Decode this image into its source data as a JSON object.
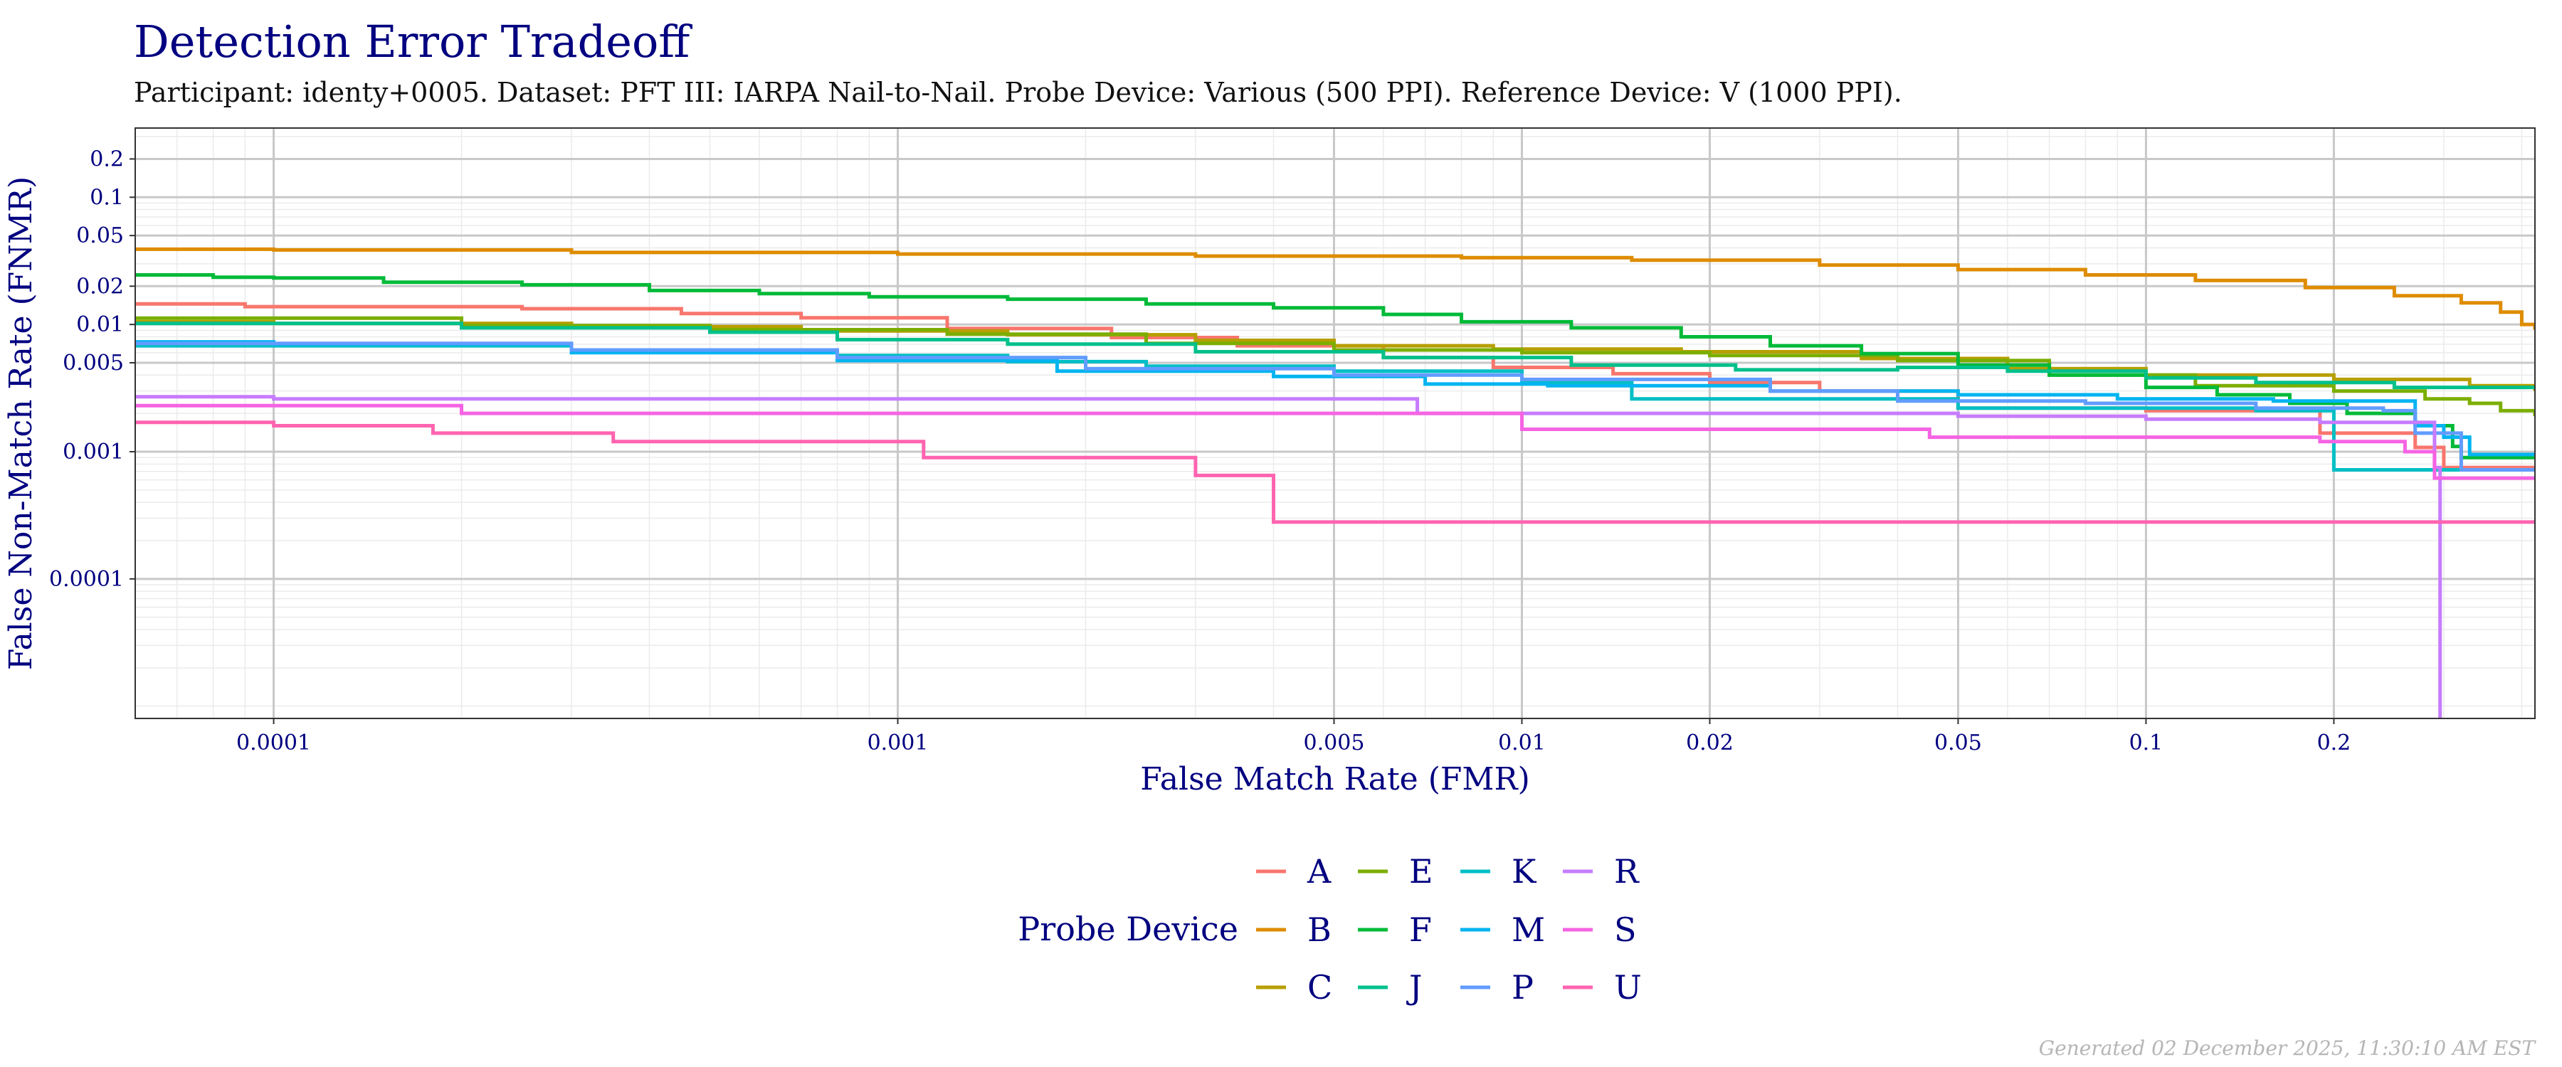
{
  "chart_data": {
    "type": "line",
    "title": "Detection Error Tradeoff",
    "subtitle": "Participant: identy+0005. Dataset: PFT III: IARPA Nail-to-Nail. Probe Device: Various (500 PPI). Reference Device: V (1000 PPI).",
    "xlabel": "False Match Rate (FMR)",
    "ylabel": "False Non-Match Rate (FNMR)",
    "x_scale": "log",
    "y_scale": "log",
    "xlim": [
      6e-05,
      0.42
    ],
    "ylim": [
      8e-06,
      0.35
    ],
    "x_ticks": [
      {
        "value": 0.0001,
        "label": "0.0001"
      },
      {
        "value": 0.001,
        "label": "0.001"
      },
      {
        "value": 0.005,
        "label": "0.005"
      },
      {
        "value": 0.01,
        "label": "0.01"
      },
      {
        "value": 0.02,
        "label": "0.02"
      },
      {
        "value": 0.05,
        "label": "0.05"
      },
      {
        "value": 0.1,
        "label": "0.1"
      },
      {
        "value": 0.2,
        "label": "0.2"
      }
    ],
    "y_ticks": [
      {
        "value": 0.2,
        "label": "0.2"
      },
      {
        "value": 0.1,
        "label": "0.1"
      },
      {
        "value": 0.05,
        "label": "0.05"
      },
      {
        "value": 0.02,
        "label": "0.02"
      },
      {
        "value": 0.01,
        "label": "0.01"
      },
      {
        "value": 0.005,
        "label": "0.005"
      },
      {
        "value": 0.001,
        "label": "0.001"
      },
      {
        "value": 0.0001,
        "label": "0.0001"
      }
    ],
    "grid": true,
    "legend": {
      "title": "Probe Device",
      "position": "bottom"
    },
    "footer": "Generated 02 December 2025, 11:30:10 AM EST",
    "series": [
      {
        "name": "A",
        "color": "#F8766D",
        "points": [
          [
            6e-05,
            0.0145
          ],
          [
            9e-05,
            0.0138
          ],
          [
            0.00025,
            0.0133
          ],
          [
            0.00045,
            0.0122
          ],
          [
            0.0007,
            0.0113
          ],
          [
            0.0012,
            0.0093
          ],
          [
            0.0022,
            0.0079
          ],
          [
            0.0035,
            0.0068
          ],
          [
            0.006,
            0.0055
          ],
          [
            0.009,
            0.0046
          ],
          [
            0.014,
            0.0041
          ],
          [
            0.02,
            0.0035
          ],
          [
            0.03,
            0.003
          ],
          [
            0.05,
            0.0022
          ],
          [
            0.1,
            0.0021
          ],
          [
            0.19,
            0.0014
          ],
          [
            0.27,
            0.00108
          ],
          [
            0.3,
            0.00075
          ],
          [
            0.42,
            0.00075
          ]
        ]
      },
      {
        "name": "B",
        "color": "#DE8C00",
        "points": [
          [
            6e-05,
            0.039
          ],
          [
            0.0001,
            0.0385
          ],
          [
            0.0003,
            0.0368
          ],
          [
            0.001,
            0.0358
          ],
          [
            0.003,
            0.0345
          ],
          [
            0.008,
            0.0335
          ],
          [
            0.015,
            0.032
          ],
          [
            0.03,
            0.0293
          ],
          [
            0.05,
            0.027
          ],
          [
            0.08,
            0.0245
          ],
          [
            0.12,
            0.0222
          ],
          [
            0.18,
            0.0195
          ],
          [
            0.25,
            0.0168
          ],
          [
            0.32,
            0.0148
          ],
          [
            0.37,
            0.0125
          ],
          [
            0.4,
            0.01
          ],
          [
            0.42,
            0.0091
          ]
        ]
      },
      {
        "name": "C",
        "color": "#B79F00",
        "points": [
          [
            6e-05,
            0.0105
          ],
          [
            0.0001,
            0.0102
          ],
          [
            0.0003,
            0.0096
          ],
          [
            0.0007,
            0.0089
          ],
          [
            0.0015,
            0.0083
          ],
          [
            0.003,
            0.0075
          ],
          [
            0.005,
            0.0068
          ],
          [
            0.009,
            0.0064
          ],
          [
            0.018,
            0.0061
          ],
          [
            0.035,
            0.0054
          ],
          [
            0.06,
            0.0045
          ],
          [
            0.1,
            0.004
          ],
          [
            0.2,
            0.0037
          ],
          [
            0.33,
            0.0033
          ],
          [
            0.42,
            0.003
          ]
        ]
      },
      {
        "name": "E",
        "color": "#7CAE00",
        "points": [
          [
            6e-05,
            0.0112
          ],
          [
            0.0002,
            0.0098
          ],
          [
            0.0005,
            0.0091
          ],
          [
            0.0012,
            0.0084
          ],
          [
            0.0025,
            0.0071
          ],
          [
            0.005,
            0.0063
          ],
          [
            0.01,
            0.006
          ],
          [
            0.02,
            0.0057
          ],
          [
            0.04,
            0.0052
          ],
          [
            0.07,
            0.004
          ],
          [
            0.12,
            0.0033
          ],
          [
            0.2,
            0.003
          ],
          [
            0.28,
            0.0026
          ],
          [
            0.33,
            0.0024
          ],
          [
            0.37,
            0.0021
          ],
          [
            0.42,
            0.0019
          ]
        ]
      },
      {
        "name": "F",
        "color": "#00BA38",
        "points": [
          [
            6e-05,
            0.0245
          ],
          [
            8e-05,
            0.0235
          ],
          [
            0.0001,
            0.0232
          ],
          [
            0.00015,
            0.0215
          ],
          [
            0.00025,
            0.0205
          ],
          [
            0.0004,
            0.0185
          ],
          [
            0.0006,
            0.0175
          ],
          [
            0.0009,
            0.0165
          ],
          [
            0.0015,
            0.0158
          ],
          [
            0.0025,
            0.0145
          ],
          [
            0.004,
            0.0135
          ],
          [
            0.006,
            0.012
          ],
          [
            0.008,
            0.0105
          ],
          [
            0.012,
            0.0094
          ],
          [
            0.018,
            0.008
          ],
          [
            0.025,
            0.0068
          ],
          [
            0.035,
            0.0059
          ],
          [
            0.05,
            0.0048
          ],
          [
            0.07,
            0.004
          ],
          [
            0.1,
            0.0032
          ],
          [
            0.13,
            0.0028
          ],
          [
            0.17,
            0.0024
          ],
          [
            0.21,
            0.002
          ],
          [
            0.27,
            0.0016
          ],
          [
            0.31,
            0.0011
          ],
          [
            0.32,
            0.0009
          ],
          [
            0.42,
            0.0009
          ]
        ]
      },
      {
        "name": "J",
        "color": "#00C08B",
        "points": [
          [
            6e-05,
            0.0102
          ],
          [
            0.0002,
            0.0094
          ],
          [
            0.0005,
            0.0087
          ],
          [
            0.0008,
            0.0076
          ],
          [
            0.0015,
            0.007
          ],
          [
            0.003,
            0.0061
          ],
          [
            0.006,
            0.0055
          ],
          [
            0.012,
            0.0048
          ],
          [
            0.022,
            0.0044
          ],
          [
            0.04,
            0.0046
          ],
          [
            0.06,
            0.0043
          ],
          [
            0.1,
            0.0038
          ],
          [
            0.15,
            0.0035
          ],
          [
            0.25,
            0.0032
          ],
          [
            0.42,
            0.0031
          ]
        ]
      },
      {
        "name": "K",
        "color": "#00BFC4",
        "points": [
          [
            6e-05,
            0.0068
          ],
          [
            0.0003,
            0.0063
          ],
          [
            0.0008,
            0.0057
          ],
          [
            0.0015,
            0.0051
          ],
          [
            0.0025,
            0.0047
          ],
          [
            0.005,
            0.0043
          ],
          [
            0.01,
            0.0035
          ],
          [
            0.015,
            0.0026
          ],
          [
            0.03,
            0.0026
          ],
          [
            0.05,
            0.0022
          ],
          [
            0.08,
            0.0022
          ],
          [
            0.15,
            0.0021
          ],
          [
            0.2,
            0.00072
          ],
          [
            0.3,
            0.00072
          ],
          [
            0.42,
            0.00072
          ]
        ]
      },
      {
        "name": "M",
        "color": "#00B4F0",
        "points": [
          [
            6e-05,
            0.0073
          ],
          [
            0.0001,
            0.007
          ],
          [
            0.0003,
            0.006
          ],
          [
            0.0008,
            0.0052
          ],
          [
            0.0018,
            0.0043
          ],
          [
            0.004,
            0.0039
          ],
          [
            0.007,
            0.0034
          ],
          [
            0.011,
            0.0033
          ],
          [
            0.025,
            0.003
          ],
          [
            0.05,
            0.0028
          ],
          [
            0.09,
            0.0026
          ],
          [
            0.16,
            0.0025
          ],
          [
            0.27,
            0.0016
          ],
          [
            0.3,
            0.0013
          ],
          [
            0.33,
            0.00095
          ],
          [
            0.42,
            0.00095
          ]
        ]
      },
      {
        "name": "P",
        "color": "#619CFF",
        "points": [
          [
            6e-05,
            0.0071
          ],
          [
            0.0003,
            0.0063
          ],
          [
            0.0008,
            0.0055
          ],
          [
            0.002,
            0.0045
          ],
          [
            0.005,
            0.004
          ],
          [
            0.01,
            0.0037
          ],
          [
            0.025,
            0.003
          ],
          [
            0.04,
            0.0025
          ],
          [
            0.08,
            0.0024
          ],
          [
            0.15,
            0.0022
          ],
          [
            0.24,
            0.0021
          ],
          [
            0.27,
            0.0014
          ],
          [
            0.32,
            0.00072
          ],
          [
            0.42,
            0.00072
          ]
        ]
      },
      {
        "name": "R",
        "color": "#C77CFF",
        "points": [
          [
            6e-05,
            0.0027
          ],
          [
            0.0001,
            0.0026
          ],
          [
            0.0004,
            0.0026
          ],
          [
            0.0012,
            0.0026
          ],
          [
            0.0025,
            0.0026
          ],
          [
            0.0045,
            0.0026
          ],
          [
            0.0068,
            0.002
          ],
          [
            0.012,
            0.002
          ],
          [
            0.025,
            0.002
          ],
          [
            0.05,
            0.0019
          ],
          [
            0.1,
            0.0018
          ],
          [
            0.19,
            0.0017
          ],
          [
            0.29,
            0.00075
          ],
          [
            0.296,
            8e-06
          ]
        ]
      },
      {
        "name": "S",
        "color": "#F564E3",
        "points": [
          [
            6e-05,
            0.0023
          ],
          [
            0.0002,
            0.002
          ],
          [
            0.0005,
            0.002
          ],
          [
            0.0012,
            0.002
          ],
          [
            0.003,
            0.002
          ],
          [
            0.008,
            0.002
          ],
          [
            0.01,
            0.0015
          ],
          [
            0.025,
            0.0015
          ],
          [
            0.045,
            0.0013
          ],
          [
            0.1,
            0.0013
          ],
          [
            0.19,
            0.0012
          ],
          [
            0.26,
            0.001
          ],
          [
            0.29,
            0.00062
          ],
          [
            0.42,
            0.00062
          ]
        ]
      },
      {
        "name": "U",
        "color": "#FF64B0",
        "points": [
          [
            6e-05,
            0.0017
          ],
          [
            0.0001,
            0.0016
          ],
          [
            0.00018,
            0.0014
          ],
          [
            0.00035,
            0.0012
          ],
          [
            0.001,
            0.0012
          ],
          [
            0.0011,
            0.0009
          ],
          [
            0.0025,
            0.0009
          ],
          [
            0.003,
            0.00065
          ],
          [
            0.004,
            0.00028
          ],
          [
            0.01,
            0.00028
          ],
          [
            0.03,
            0.00028
          ],
          [
            0.1,
            0.00028
          ],
          [
            0.42,
            0.00028
          ]
        ]
      }
    ]
  }
}
